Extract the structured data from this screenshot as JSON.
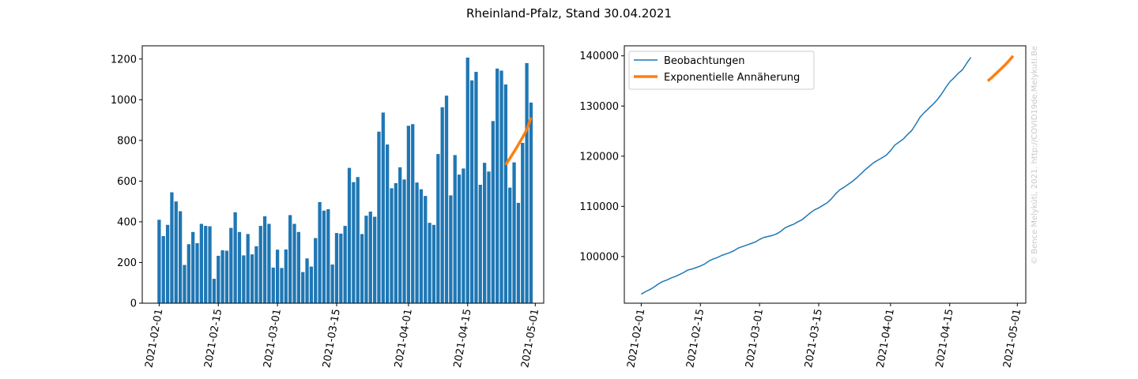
{
  "figure": {
    "suptitle": "Rheinland-Pfalz, Stand 30.04.2021",
    "watermark": "© Bence Melykúti, 2021. http://COVID19de.Melykuti.Be"
  },
  "colors": {
    "blue": "#1f77b4",
    "orange": "#ff7f0e",
    "watermark": "#c8c8c8"
  },
  "chart_data": [
    {
      "type": "bar",
      "title": "",
      "xlabel": "",
      "ylabel": "",
      "x_start": "2021-02-01",
      "ylim": [
        0,
        1265
      ],
      "xlim": [
        "2021-01-28",
        "2021-05-03"
      ],
      "yticks": [
        0,
        200,
        400,
        600,
        800,
        1000,
        1200
      ],
      "xticks": [
        "2021-02-01",
        "2021-02-15",
        "2021-03-01",
        "2021-03-15",
        "2021-04-01",
        "2021-04-15",
        "2021-05-01"
      ],
      "series": [
        {
          "type": "bar",
          "dates": [
            "2021-02-01",
            "2021-02-02",
            "2021-02-03",
            "2021-02-04",
            "2021-02-05",
            "2021-02-06",
            "2021-02-07",
            "2021-02-08",
            "2021-02-09",
            "2021-02-10",
            "2021-02-11",
            "2021-02-12",
            "2021-02-13",
            "2021-02-14",
            "2021-02-15",
            "2021-02-16",
            "2021-02-17",
            "2021-02-18",
            "2021-02-19",
            "2021-02-20",
            "2021-02-21",
            "2021-02-22",
            "2021-02-23",
            "2021-02-24",
            "2021-02-25",
            "2021-02-26",
            "2021-02-27",
            "2021-02-28",
            "2021-03-01",
            "2021-03-02",
            "2021-03-03",
            "2021-03-04",
            "2021-03-05",
            "2021-03-06",
            "2021-03-07",
            "2021-03-08",
            "2021-03-09",
            "2021-03-10",
            "2021-03-11",
            "2021-03-12",
            "2021-03-13",
            "2021-03-14",
            "2021-03-15",
            "2021-03-16",
            "2021-03-17",
            "2021-03-18",
            "2021-03-19",
            "2021-03-20",
            "2021-03-21",
            "2021-03-22",
            "2021-03-23",
            "2021-03-24",
            "2021-03-25",
            "2021-03-26",
            "2021-03-27",
            "2021-03-28",
            "2021-03-29",
            "2021-03-30",
            "2021-03-31",
            "2021-04-01",
            "2021-04-02",
            "2021-04-03",
            "2021-04-04",
            "2021-04-05",
            "2021-04-06",
            "2021-04-07",
            "2021-04-08",
            "2021-04-09",
            "2021-04-10",
            "2021-04-11",
            "2021-04-12",
            "2021-04-13",
            "2021-04-14",
            "2021-04-15",
            "2021-04-16",
            "2021-04-17",
            "2021-04-18",
            "2021-04-19",
            "2021-04-20",
            "2021-04-21",
            "2021-04-22",
            "2021-04-23",
            "2021-04-24",
            "2021-04-25",
            "2021-04-26",
            "2021-04-27",
            "2021-04-28",
            "2021-04-29",
            "2021-04-30"
          ],
          "values": [
            410,
            330,
            385,
            545,
            500,
            452,
            188,
            290,
            350,
            295,
            390,
            380,
            378,
            120,
            233,
            260,
            258,
            370,
            447,
            350,
            235,
            340,
            240,
            280,
            380,
            427,
            390,
            175,
            263,
            173,
            264,
            433,
            390,
            350,
            153,
            220,
            180,
            320,
            497,
            455,
            462,
            190,
            345,
            342,
            380,
            665,
            595,
            620,
            340,
            430,
            450,
            425,
            843,
            937,
            780,
            565,
            590,
            668,
            608,
            872,
            880,
            593,
            560,
            527,
            395,
            385,
            733,
            963,
            1020,
            530,
            728,
            632,
            662,
            1207,
            1095,
            1137,
            582,
            690,
            647,
            895,
            1153,
            1143,
            1075,
            568,
            692,
            493,
            788,
            1180,
            986
          ]
        },
        {
          "type": "line",
          "name": "",
          "dates": [
            "2021-04-24",
            "2021-04-25",
            "2021-04-26",
            "2021-04-27",
            "2021-04-28",
            "2021-04-29",
            "2021-04-30"
          ],
          "values": [
            680,
            712,
            745,
            779,
            815,
            853,
            912
          ]
        }
      ]
    },
    {
      "type": "line",
      "title": "",
      "xlabel": "",
      "ylabel": "",
      "ylim": [
        90700,
        142000
      ],
      "xlim": [
        "2021-01-28",
        "2021-05-03"
      ],
      "yticks": [
        100000,
        110000,
        120000,
        130000,
        140000
      ],
      "xticks": [
        "2021-02-01",
        "2021-02-15",
        "2021-03-01",
        "2021-03-15",
        "2021-04-01",
        "2021-04-15",
        "2021-05-01"
      ],
      "legend": "upper left",
      "series": [
        {
          "name": "Beobachtungen",
          "x_start": "2021-02-01",
          "values": [
            92500,
            93000,
            93400,
            93900,
            94500,
            95000,
            95300,
            95700,
            96000,
            96400,
            96800,
            97300,
            97500,
            97800,
            98100,
            98500,
            99100,
            99500,
            99800,
            100200,
            100500,
            100800,
            101200,
            101700,
            102000,
            102300,
            102600,
            102900,
            103400,
            103800,
            104000,
            104200,
            104500,
            105000,
            105700,
            106100,
            106400,
            106900,
            107300,
            108000,
            108700,
            109300,
            109700,
            110200,
            110700,
            111500,
            112500,
            113300,
            113800,
            114400,
            115000,
            115700,
            116500,
            117300,
            118000,
            118700,
            119200,
            119700,
            120200,
            121100,
            122200,
            122800,
            123400,
            124300,
            125100,
            126400,
            127800,
            128700,
            129500,
            130300,
            131200,
            132300,
            133600,
            134800,
            135600,
            136500,
            137200,
            138500,
            139700
          ]
        },
        {
          "name": "Exponentielle Annäherung",
          "x_start": "2021-04-24",
          "values": [
            135000,
            135700,
            136500,
            137300,
            138100,
            139000,
            140000
          ]
        }
      ]
    }
  ]
}
